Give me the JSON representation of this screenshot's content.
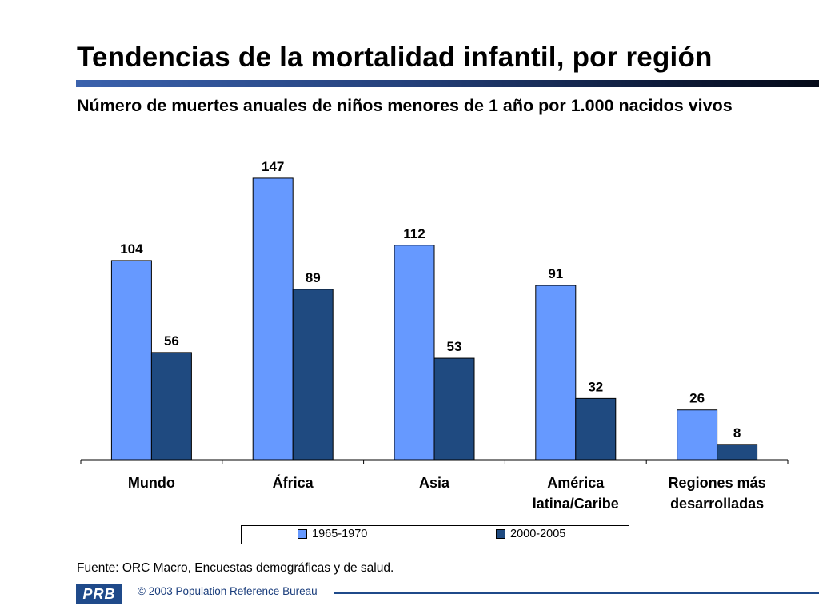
{
  "header": {
    "title": "Tendencias de la mortalidad infantil, por región",
    "subtitle": "Número de muertes anuales de niños menores de 1 año por 1.000 nacidos vivos"
  },
  "chart_data": {
    "type": "bar",
    "title": "",
    "xlabel": "",
    "ylabel": "",
    "ylim": [
      0,
      160
    ],
    "grid": false,
    "legend_position": "bottom",
    "categories": [
      [
        "Mundo"
      ],
      [
        "África"
      ],
      [
        "Asia"
      ],
      [
        "América",
        "latina/Caribe"
      ],
      [
        "Regiones más",
        "desarrolladas"
      ]
    ],
    "series": [
      {
        "name": "1965-1970",
        "color": "#6699ff",
        "values": [
          104,
          147,
          112,
          91,
          26
        ]
      },
      {
        "name": "2000-2005",
        "color": "#1f4a80",
        "values": [
          56,
          89,
          53,
          32,
          8
        ]
      }
    ]
  },
  "footer": {
    "source": "Fuente: ORC Macro, Encuestas demográficas y de salud.",
    "logo_text": "PRB",
    "copyright": "© 2003 Population Reference Bureau"
  },
  "colors": {
    "accent": "#1f4a8a",
    "series_light": "#6699ff",
    "series_dark": "#1f4a80"
  }
}
